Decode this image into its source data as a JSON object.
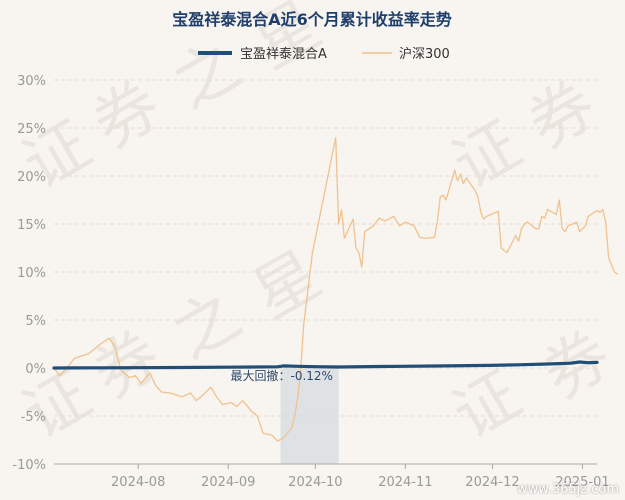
{
  "page": {
    "watermark_url": "www.365jz.com"
  },
  "colors": {
    "background": "#f8f4ef",
    "fund": "#1f4e79",
    "index": "#f0c28f",
    "shade": "#c9d3dd",
    "axis_text": "#9a9a9a",
    "grid": "#e3ddd6",
    "title": "#1f3f6a"
  },
  "chart_data": {
    "type": "line",
    "title": "宝盈祥泰混合A近6个月累计收益率走势",
    "xlabel": "",
    "ylabel": "",
    "ylim": [
      -10,
      30
    ],
    "y_ticks": [
      -10,
      -5,
      0,
      5,
      10,
      15,
      20,
      25,
      30
    ],
    "y_tick_labels": [
      "-10%",
      "-5%",
      "0%",
      "5%",
      "10%",
      "15%",
      "20%",
      "25%",
      "30%"
    ],
    "x_ticks": [
      {
        "date": "2024-08-01",
        "label": "2024-08"
      },
      {
        "date": "2024-09-01",
        "label": "2024-09"
      },
      {
        "date": "2024-10-01",
        "label": "2024-10"
      },
      {
        "date": "2024-11-01",
        "label": "2024-11"
      },
      {
        "date": "2024-12-01",
        "label": "2024-12"
      },
      {
        "date": "2025-01-01",
        "label": "2025-01"
      }
    ],
    "x_range": [
      "2024-07-03",
      "2025-01-06"
    ],
    "grid": "horizontal dashed",
    "legend_position": "top-center",
    "max_drawdown": {
      "label": "最大回撤：-0.12%",
      "start": "2024-09-19",
      "end": "2024-10-09"
    },
    "series": [
      {
        "name": "宝盈祥泰混合A",
        "points": [
          [
            "2024-07-03",
            0.0
          ],
          [
            "2024-07-10",
            0.01
          ],
          [
            "2024-07-20",
            0.02
          ],
          [
            "2024-07-31",
            0.03
          ],
          [
            "2024-08-15",
            0.05
          ],
          [
            "2024-08-31",
            0.08
          ],
          [
            "2024-09-10",
            0.1
          ],
          [
            "2024-09-18",
            0.12
          ],
          [
            "2024-09-20",
            0.22
          ],
          [
            "2024-09-25",
            0.18
          ],
          [
            "2024-10-01",
            0.14
          ],
          [
            "2024-10-09",
            0.1
          ],
          [
            "2024-10-20",
            0.15
          ],
          [
            "2024-10-31",
            0.18
          ],
          [
            "2024-11-15",
            0.22
          ],
          [
            "2024-11-30",
            0.27
          ],
          [
            "2024-12-10",
            0.33
          ],
          [
            "2024-12-20",
            0.42
          ],
          [
            "2024-12-28",
            0.5
          ],
          [
            "2024-12-31",
            0.62
          ],
          [
            "2025-01-03",
            0.55
          ],
          [
            "2025-01-06",
            0.58
          ]
        ]
      },
      {
        "name": "沪深300",
        "points": [
          [
            "2024-07-03",
            0.0
          ],
          [
            "2024-07-05",
            -0.8
          ],
          [
            "2024-07-08",
            0.2
          ],
          [
            "2024-07-10",
            1.0
          ],
          [
            "2024-07-12",
            1.2
          ],
          [
            "2024-07-15",
            1.5
          ],
          [
            "2024-07-17",
            2.0
          ],
          [
            "2024-07-19",
            2.5
          ],
          [
            "2024-07-22",
            3.1
          ],
          [
            "2024-07-24",
            2.2
          ],
          [
            "2024-07-26",
            -0.2
          ],
          [
            "2024-07-29",
            -1.0
          ],
          [
            "2024-07-31",
            -0.8
          ],
          [
            "2024-08-02",
            -1.6
          ],
          [
            "2024-08-05",
            -0.5
          ],
          [
            "2024-08-07",
            -1.8
          ],
          [
            "2024-08-09",
            -2.5
          ],
          [
            "2024-08-12",
            -2.6
          ],
          [
            "2024-08-14",
            -2.8
          ],
          [
            "2024-08-16",
            -3.0
          ],
          [
            "2024-08-19",
            -2.6
          ],
          [
            "2024-08-21",
            -3.4
          ],
          [
            "2024-08-23",
            -2.9
          ],
          [
            "2024-08-26",
            -2.0
          ],
          [
            "2024-08-28",
            -3.0
          ],
          [
            "2024-08-30",
            -3.8
          ],
          [
            "2024-09-02",
            -3.6
          ],
          [
            "2024-09-04",
            -4.0
          ],
          [
            "2024-09-06",
            -3.4
          ],
          [
            "2024-09-09",
            -4.5
          ],
          [
            "2024-09-11",
            -5.0
          ],
          [
            "2024-09-13",
            -6.8
          ],
          [
            "2024-09-16",
            -7.0
          ],
          [
            "2024-09-18",
            -7.6
          ],
          [
            "2024-09-20",
            -7.3
          ],
          [
            "2024-09-23",
            -6.2
          ],
          [
            "2024-09-24",
            -4.8
          ],
          [
            "2024-09-25",
            -3.0
          ],
          [
            "2024-09-26",
            0.0
          ],
          [
            "2024-09-27",
            4.5
          ],
          [
            "2024-09-30",
            12.0
          ],
          [
            "2024-10-08",
            24.0
          ],
          [
            "2024-10-09",
            15.0
          ],
          [
            "2024-10-10",
            16.5
          ],
          [
            "2024-10-11",
            13.5
          ],
          [
            "2024-10-14",
            15.5
          ],
          [
            "2024-10-15",
            12.5
          ],
          [
            "2024-10-16",
            12.0
          ],
          [
            "2024-10-17",
            10.5
          ],
          [
            "2024-10-18",
            14.2
          ],
          [
            "2024-10-21",
            14.8
          ],
          [
            "2024-10-23",
            15.6
          ],
          [
            "2024-10-25",
            15.3
          ],
          [
            "2024-10-28",
            15.8
          ],
          [
            "2024-10-30",
            14.8
          ],
          [
            "2024-11-01",
            15.2
          ],
          [
            "2024-11-04",
            14.8
          ],
          [
            "2024-11-06",
            13.6
          ],
          [
            "2024-11-08",
            13.5
          ],
          [
            "2024-11-11",
            13.6
          ],
          [
            "2024-11-12",
            15.2
          ],
          [
            "2024-11-13",
            17.8
          ],
          [
            "2024-11-14",
            18.0
          ],
          [
            "2024-11-15",
            17.5
          ],
          [
            "2024-11-18",
            20.6
          ],
          [
            "2024-11-19",
            19.5
          ],
          [
            "2024-11-20",
            20.2
          ],
          [
            "2024-11-21",
            19.2
          ],
          [
            "2024-11-22",
            19.8
          ],
          [
            "2024-11-25",
            18.5
          ],
          [
            "2024-11-26",
            17.8
          ],
          [
            "2024-11-27",
            16.2
          ],
          [
            "2024-11-28",
            15.5
          ],
          [
            "2024-11-29",
            15.8
          ],
          [
            "2024-12-02",
            16.2
          ],
          [
            "2024-12-03",
            16.3
          ],
          [
            "2024-12-04",
            12.5
          ],
          [
            "2024-12-06",
            12.0
          ],
          [
            "2024-12-09",
            13.8
          ],
          [
            "2024-12-10",
            13.2
          ],
          [
            "2024-12-11",
            14.5
          ],
          [
            "2024-12-12",
            15.0
          ],
          [
            "2024-12-13",
            15.2
          ],
          [
            "2024-12-16",
            14.5
          ],
          [
            "2024-12-17",
            14.5
          ],
          [
            "2024-12-18",
            15.8
          ],
          [
            "2024-12-19",
            15.6
          ],
          [
            "2024-12-20",
            16.5
          ],
          [
            "2024-12-23",
            16.0
          ],
          [
            "2024-12-24",
            17.5
          ],
          [
            "2024-12-25",
            14.5
          ],
          [
            "2024-12-26",
            14.2
          ],
          [
            "2024-12-27",
            14.8
          ],
          [
            "2024-12-30",
            15.2
          ],
          [
            "2024-12-31",
            14.2
          ],
          [
            "2025-01-02",
            14.8
          ],
          [
            "2025-01-03",
            15.8
          ],
          [
            "2025-01-05",
            16.2
          ],
          [
            "2025-01-06",
            16.4
          ],
          [
            "2025-01-07",
            16.2
          ],
          [
            "2025-01-08",
            16.5
          ],
          [
            "2025-01-09",
            15.2
          ],
          [
            "2025-01-10",
            11.5
          ],
          [
            "2025-01-12",
            10.0
          ],
          [
            "2025-01-13",
            9.8
          ]
        ]
      }
    ]
  }
}
